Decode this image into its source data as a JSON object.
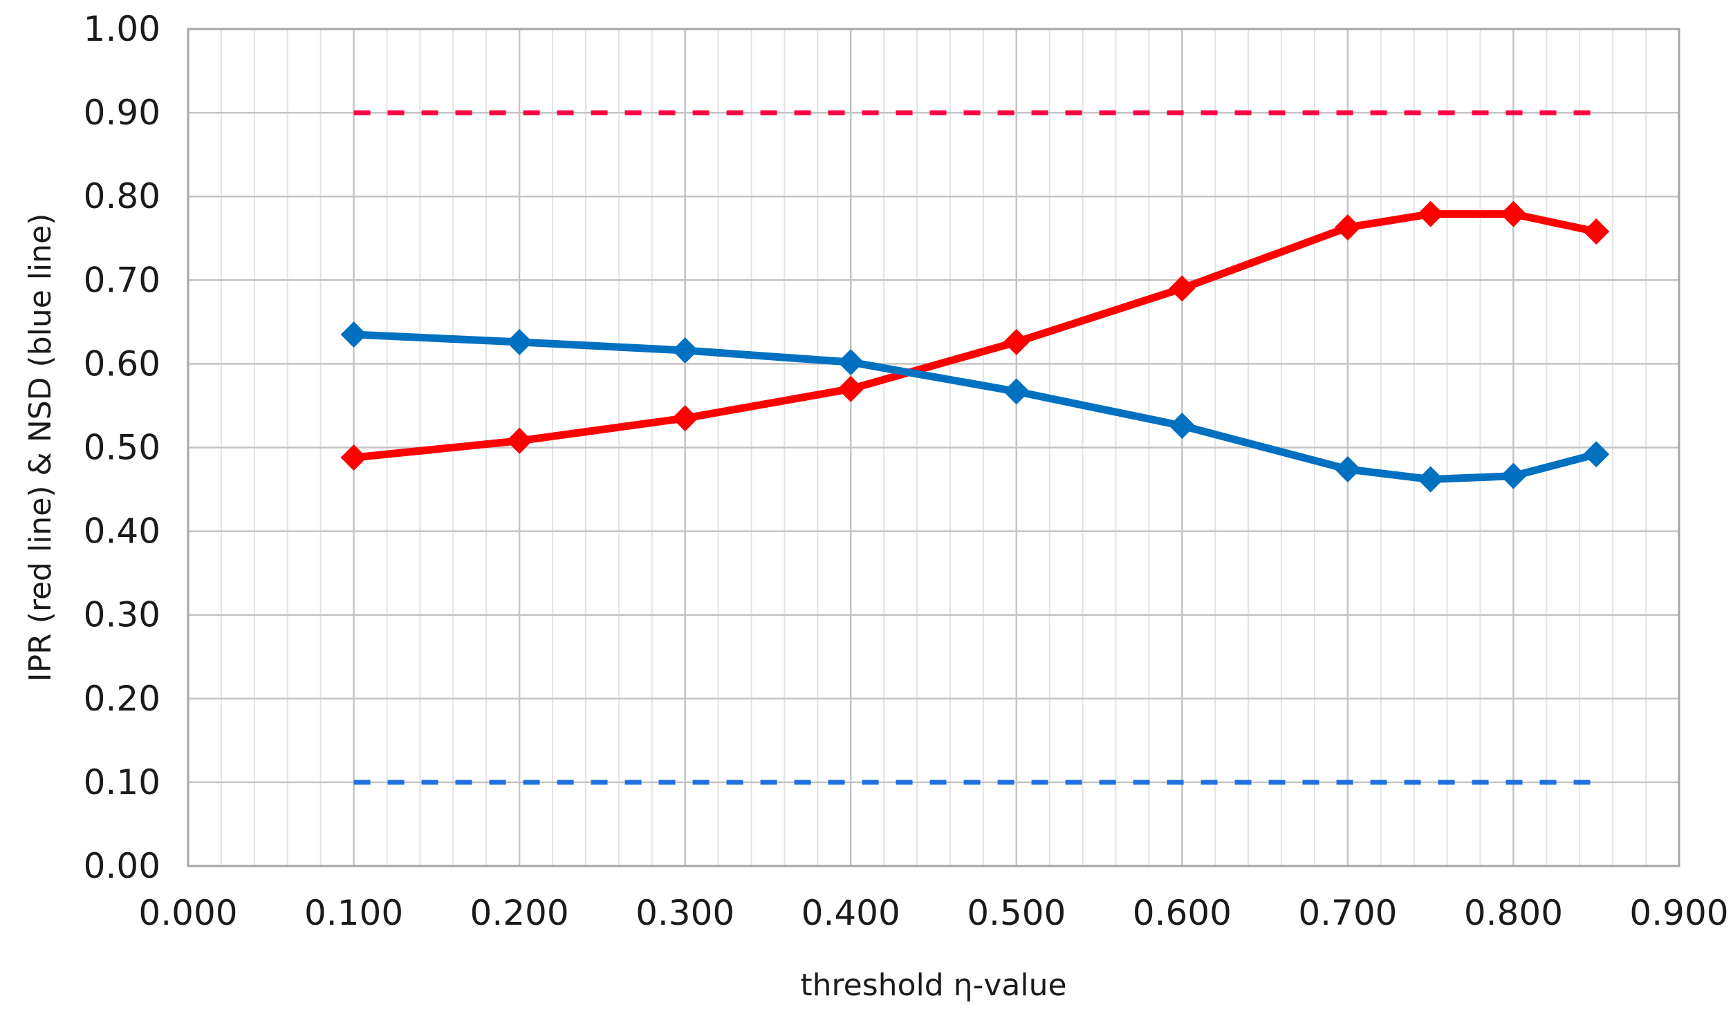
{
  "chart_data": {
    "type": "line",
    "xlabel": "threshold η-value",
    "ylabel": "IPR (red line) & NSD (blue line)",
    "xlim": [
      0.0,
      0.9
    ],
    "ylim": [
      0.0,
      1.0
    ],
    "x_ticks": [
      "0.000",
      "0.100",
      "0.200",
      "0.300",
      "0.400",
      "0.500",
      "0.600",
      "0.700",
      "0.800",
      "0.900"
    ],
    "y_ticks": [
      "0.00",
      "0.10",
      "0.20",
      "0.30",
      "0.40",
      "0.50",
      "0.60",
      "0.70",
      "0.80",
      "0.90",
      "1.00"
    ],
    "grid": true,
    "series": [
      {
        "color": "#ff0000",
        "marker": "diamond",
        "x": [
          0.1,
          0.2,
          0.3,
          0.4,
          0.5,
          0.6,
          0.7,
          0.75,
          0.8,
          0.85
        ],
        "values": [
          0.488,
          0.508,
          0.535,
          0.57,
          0.626,
          0.69,
          0.763,
          0.779,
          0.779,
          0.758
        ]
      },
      {
        "color": "#0070c0",
        "marker": "diamond",
        "x": [
          0.1,
          0.2,
          0.3,
          0.4,
          0.5,
          0.6,
          0.7,
          0.75,
          0.8,
          0.85
        ],
        "values": [
          0.635,
          0.626,
          0.616,
          0.602,
          0.567,
          0.526,
          0.474,
          0.462,
          0.466,
          0.492
        ]
      }
    ],
    "reference_lines": [
      {
        "color": "#ff0040",
        "style": "dashed",
        "x": [
          0.1,
          0.85
        ],
        "y": 0.9
      },
      {
        "color": "#1f6fe0",
        "style": "dashed",
        "x": [
          0.1,
          0.85
        ],
        "y": 0.1
      }
    ]
  }
}
